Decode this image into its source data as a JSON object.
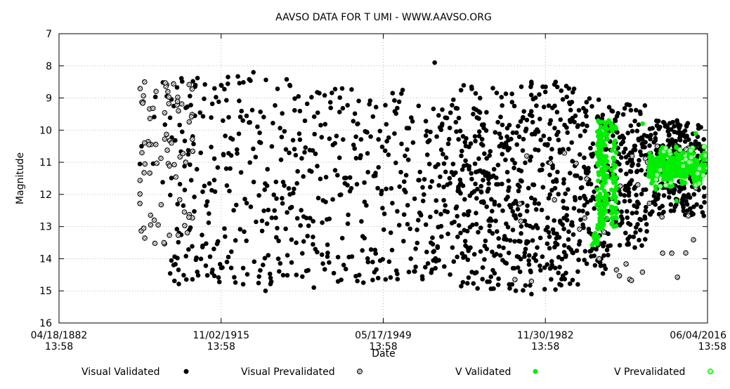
{
  "chart_data": {
    "type": "scatter",
    "title": "AAVSO DATA FOR T UMI - WWW.AAVSO.ORG",
    "xlabel": "Date",
    "ylabel": "Magnitude",
    "ylim": [
      16,
      7
    ],
    "y_inverted": true,
    "y_ticks": [
      "7",
      "8",
      "9",
      "10",
      "11",
      "12",
      "13",
      "14",
      "15",
      "16"
    ],
    "xlim": [
      "04/18/1882 13:58",
      "06/04/2016 13:58"
    ],
    "x_ticks": [
      {
        "date": "04/18/1882",
        "time": "13:58"
      },
      {
        "date": "11/02/1915",
        "time": "13:58"
      },
      {
        "date": "05/17/1949",
        "time": "13:58"
      },
      {
        "date": "11/30/1982",
        "time": "13:58"
      },
      {
        "date": "06/04/2016",
        "time": "13:58"
      }
    ],
    "grid": true,
    "legend_position": "bottom",
    "series": [
      {
        "name": "Visual Validated",
        "color": "#000000",
        "marker": "filled-circle",
        "x_range_years": [
          1899,
          2016
        ],
        "magnitude_range": [
          7.9,
          15.1
        ],
        "points": [
          [
            1910.5,
            8.6
          ],
          [
            1912,
            13.6
          ],
          [
            1922.5,
            8.2
          ],
          [
            1925,
            15.0
          ],
          [
            1930,
            8.6
          ],
          [
            1935,
            14.9
          ],
          [
            1960,
            7.9
          ],
          [
            1980,
            15.1
          ],
          [
            1985,
            8.5
          ],
          [
            1995,
            13.9
          ]
        ]
      },
      {
        "name": "Visual Prevalidated",
        "color": "#000000",
        "marker": "hatched-circle",
        "x_range_years": [
          1899,
          2016
        ],
        "magnitude_range": [
          8.5,
          14.7
        ],
        "points": [
          [
            1900,
            8.5
          ],
          [
            1900,
            10.4
          ],
          [
            1902,
            12.8
          ],
          [
            1904,
            13.5
          ],
          [
            1907,
            9.4
          ],
          [
            1908.5,
            11.0
          ],
          [
            1980,
            14.7
          ],
          [
            1994,
            14.0
          ],
          [
            2007,
            12.7
          ]
        ]
      },
      {
        "name": "V Validated",
        "color": "#00ee00",
        "marker": "filled-circle",
        "x_range_years": [
          1993,
          2016
        ],
        "magnitude_range": [
          9.7,
          13.5
        ],
        "points": [
          [
            1993,
            13.5
          ],
          [
            1994.5,
            10.5
          ],
          [
            1996,
            9.7
          ],
          [
            1997,
            13.0
          ],
          [
            2003,
            9.8
          ],
          [
            2010,
            12.2
          ],
          [
            2014,
            10.1
          ]
        ]
      },
      {
        "name": "V Prevalidated",
        "color": "#00ee00",
        "marker": "hatched-circle",
        "x_range_years": [
          2004,
          2016
        ],
        "magnitude_range": [
          10.5,
          11.8
        ],
        "points": [
          [
            2004,
            11.0
          ],
          [
            2006,
            10.5
          ],
          [
            2008,
            11.5
          ],
          [
            2010,
            11.2
          ],
          [
            2012,
            10.6
          ],
          [
            2014,
            11.8
          ],
          [
            2016,
            11.1
          ]
        ]
      }
    ]
  }
}
